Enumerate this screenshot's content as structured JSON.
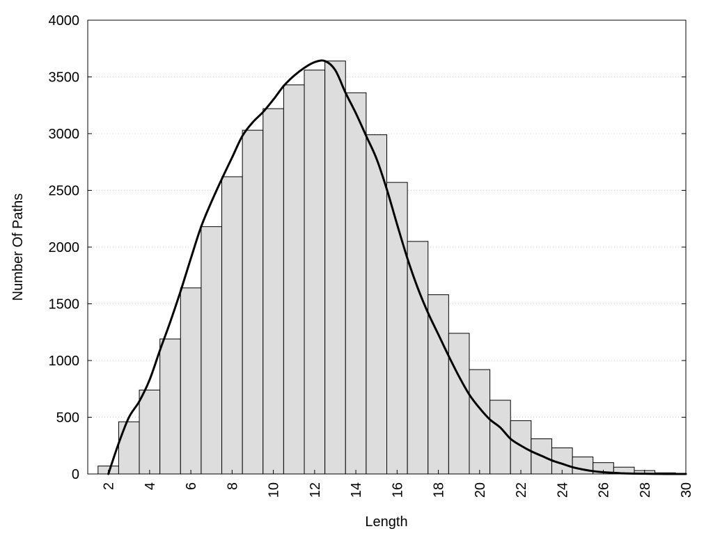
{
  "chart_data": {
    "type": "bar",
    "title": "",
    "xlabel": "Length",
    "ylabel": "Number Of Paths",
    "xlim": [
      1,
      30
    ],
    "ylim": [
      0,
      4000
    ],
    "x_ticks": [
      "2",
      "4",
      "6",
      "8",
      "10",
      "12",
      "14",
      "16",
      "18",
      "20",
      "22",
      "24",
      "26",
      "28",
      "30"
    ],
    "y_ticks": [
      "0",
      "500",
      "1000",
      "1500",
      "2000",
      "2500",
      "3000",
      "3500",
      "4000"
    ],
    "grid": "horizontal dotted",
    "categories": [
      2,
      3,
      4,
      5,
      6,
      7,
      8,
      9,
      10,
      11,
      12,
      13,
      14,
      15,
      16,
      17,
      18,
      19,
      20,
      21,
      22,
      23,
      24,
      25,
      26,
      27,
      28,
      29
    ],
    "values": [
      70,
      460,
      740,
      1190,
      1640,
      2180,
      2620,
      3030,
      3220,
      3430,
      3560,
      3640,
      3360,
      2990,
      2570,
      2050,
      1580,
      1240,
      920,
      650,
      470,
      310,
      230,
      150,
      100,
      60,
      30,
      10
    ],
    "curve": {
      "x": [
        2,
        2.5,
        3,
        3.5,
        4,
        4.5,
        5,
        5.5,
        6,
        6.5,
        7,
        7.5,
        8,
        8.5,
        9,
        9.5,
        10,
        10.5,
        11,
        11.5,
        12,
        12.5,
        13,
        13.5,
        14,
        14.5,
        15,
        15.5,
        16,
        16.5,
        17,
        17.5,
        18,
        18.5,
        19,
        19.5,
        20,
        20.5,
        21,
        21.5,
        22,
        22.5,
        23,
        23.5,
        24,
        24.5,
        25,
        25.5,
        26,
        26.5,
        27,
        27.5,
        28,
        28.5,
        29,
        29.5,
        30
      ],
      "y": [
        0,
        270,
        500,
        640,
        830,
        1090,
        1340,
        1610,
        1900,
        2180,
        2400,
        2600,
        2790,
        2980,
        3100,
        3190,
        3300,
        3420,
        3510,
        3580,
        3630,
        3640,
        3560,
        3360,
        3180,
        2980,
        2780,
        2510,
        2200,
        1900,
        1640,
        1420,
        1230,
        1040,
        860,
        700,
        580,
        480,
        410,
        310,
        250,
        200,
        160,
        120,
        90,
        60,
        40,
        25,
        15,
        10,
        5,
        3,
        2,
        1,
        0,
        0,
        0
      ]
    }
  }
}
